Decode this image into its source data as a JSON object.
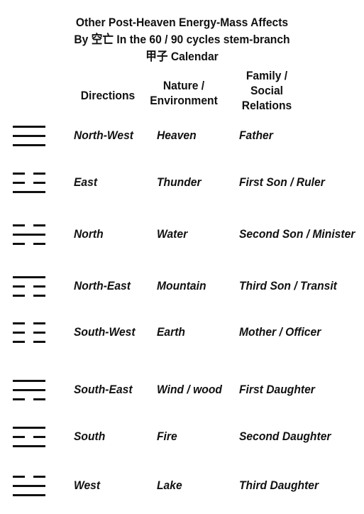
{
  "title": {
    "line1": "Other Post-Heaven Energy-Mass Affects",
    "line2": "By 空亡 In the 60 / 90 cycles stem-branch",
    "line3": "甲子 Calendar"
  },
  "headers": {
    "directions": "Directions",
    "nature": "Nature /\nEnvironment",
    "family": "Family /\nSocial\nRelations"
  },
  "rows": [
    {
      "direction": "North-West",
      "nature": "Heaven",
      "family": "Father",
      "trigram": [
        "solid",
        "solid",
        "solid"
      ]
    },
    {
      "direction": "East",
      "nature": "Thunder",
      "family": "First Son / Ruler",
      "trigram": [
        "broken",
        "broken",
        "solid"
      ]
    },
    {
      "direction": "North",
      "nature": "Water",
      "family": "Second Son / Minister",
      "trigram": [
        "broken",
        "solid",
        "broken"
      ]
    },
    {
      "direction": "North-East",
      "nature": "Mountain",
      "family": "Third Son / Transit",
      "trigram": [
        "solid",
        "broken",
        "broken"
      ]
    },
    {
      "direction": "South-West",
      "nature": "Earth",
      "family": "Mother / Officer",
      "trigram": [
        "broken",
        "broken",
        "broken"
      ]
    },
    {
      "direction": "South-East",
      "nature": "Wind / wood",
      "family": "First Daughter",
      "trigram": [
        "solid",
        "solid",
        "broken"
      ]
    },
    {
      "direction": "South",
      "nature": "Fire",
      "family": "Second Daughter",
      "trigram": [
        "solid",
        "broken",
        "solid"
      ]
    },
    {
      "direction": "West",
      "nature": "Lake",
      "family": "Third Daughter",
      "trigram": [
        "broken",
        "solid",
        "solid"
      ]
    }
  ]
}
